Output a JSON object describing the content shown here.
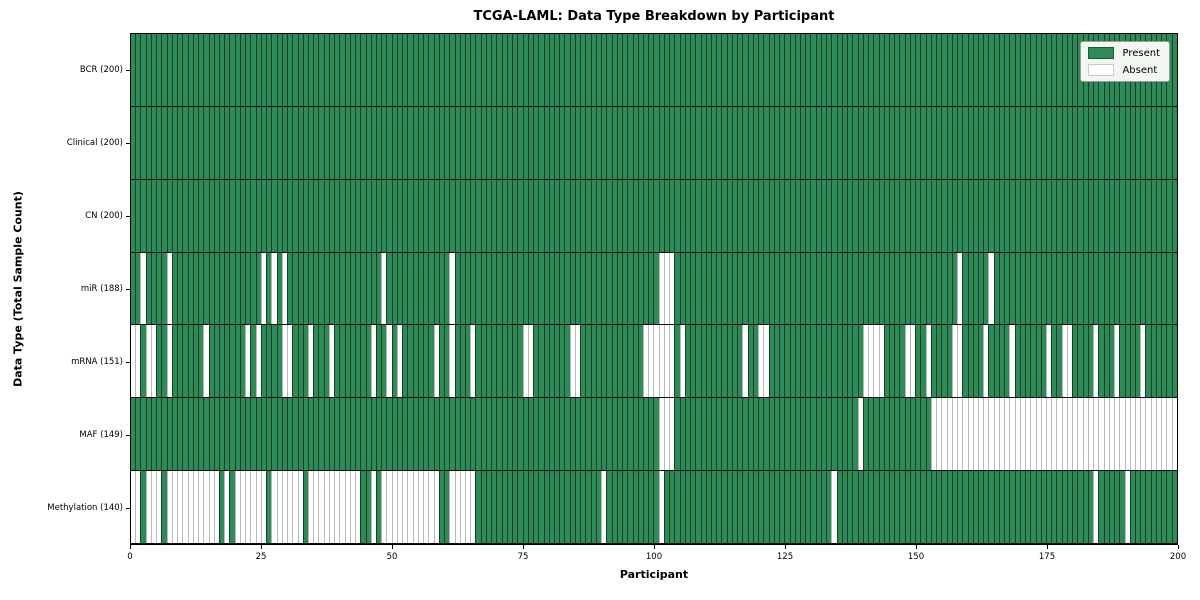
{
  "chart_data": {
    "type": "heatmap",
    "title": "TCGA-LAML: Data Type Breakdown by Participant",
    "xlabel": "Participant",
    "ylabel": "Data Type (Total Sample Count)",
    "x_range": [
      0,
      200
    ],
    "n_participants": 200,
    "x_ticks": [
      0,
      25,
      50,
      75,
      100,
      125,
      150,
      175,
      200
    ],
    "grid": false,
    "legend_position": "upper right",
    "colors": {
      "present": "#2e8b57",
      "absent": "#ffffff"
    },
    "legend": [
      {
        "label": "Present",
        "value": "present"
      },
      {
        "label": "Absent",
        "value": "absent"
      }
    ],
    "rows": [
      {
        "label": "BCR (200)",
        "data_type": "BCR",
        "present_count": 200,
        "absent_participants": []
      },
      {
        "label": "Clinical (200)",
        "data_type": "Clinical",
        "present_count": 200,
        "absent_participants": []
      },
      {
        "label": "CN (200)",
        "data_type": "CN",
        "present_count": 200,
        "absent_participants": []
      },
      {
        "label": "miR (188)",
        "data_type": "miR",
        "present_count": 188,
        "absent_participants": [
          2,
          7,
          25,
          27,
          29,
          48,
          61,
          101,
          102,
          103,
          158,
          164
        ]
      },
      {
        "label": "mRNA (151)",
        "data_type": "mRNA",
        "present_count": 151,
        "absent_participants": [
          0,
          1,
          3,
          4,
          7,
          14,
          22,
          24,
          29,
          30,
          34,
          38,
          46,
          49,
          51,
          58,
          61,
          65,
          75,
          76,
          84,
          85,
          98,
          99,
          100,
          101,
          102,
          103,
          105,
          117,
          120,
          121,
          140,
          141,
          142,
          143,
          148,
          149,
          152,
          157,
          158,
          163,
          168,
          175,
          178,
          179,
          184,
          188,
          193
        ]
      },
      {
        "label": "MAF (149)",
        "data_type": "MAF",
        "present_count": 149,
        "absent_participants": [
          101,
          102,
          103,
          139,
          153,
          154,
          155,
          156,
          157,
          158,
          159,
          160,
          161,
          162,
          163,
          164,
          165,
          166,
          167,
          168,
          169,
          170,
          171,
          172,
          173,
          174,
          175,
          176,
          177,
          178,
          179,
          180,
          181,
          182,
          183,
          184,
          185,
          186,
          187,
          188,
          189,
          190,
          191,
          192,
          193,
          194,
          195,
          196,
          197,
          198,
          199
        ]
      },
      {
        "label": "Methylation (140)",
        "data_type": "Methylation",
        "present_count": 140,
        "absent_participants": [
          0,
          1,
          3,
          4,
          5,
          7,
          8,
          9,
          10,
          11,
          12,
          13,
          14,
          15,
          16,
          18,
          20,
          21,
          22,
          23,
          24,
          25,
          27,
          28,
          29,
          30,
          31,
          32,
          34,
          35,
          36,
          37,
          38,
          39,
          40,
          41,
          42,
          43,
          46,
          48,
          49,
          50,
          51,
          52,
          53,
          54,
          55,
          56,
          57,
          58,
          61,
          62,
          63,
          64,
          65,
          90,
          101,
          134,
          184,
          190
        ]
      }
    ]
  }
}
